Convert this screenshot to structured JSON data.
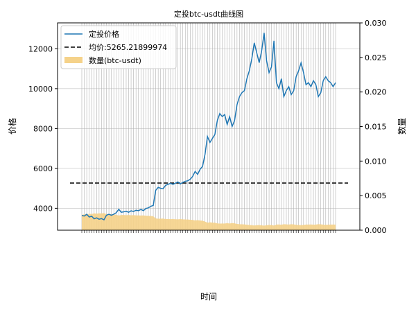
{
  "chart_data": {
    "type": "line",
    "title": "定投btc-usdt曲线图",
    "xlabel": "时间",
    "ylabel_left": "价格",
    "ylabel_right": "数量",
    "ylim_left": [
      2900,
      13300
    ],
    "ylim_right": [
      0.0,
      0.03
    ],
    "yticks_left": [
      4000,
      6000,
      8000,
      10000,
      12000
    ],
    "yticks_right": [
      "0.000",
      "0.005",
      "0.010",
      "0.015",
      "0.020",
      "0.025",
      "0.030"
    ],
    "grid": true,
    "legend_position": "top-left",
    "legend": {
      "price_label": "定投价格",
      "mean_label": "均价:5265.21899974",
      "qty_label": "数量(btc-usdt)"
    },
    "mean_price": 5265.21899974,
    "colors": {
      "price": "#1f77b4",
      "mean": "#000000",
      "quantity": "#f5d28a",
      "grid": "#b0b0b0"
    },
    "n_points": 104,
    "price_series": [
      3640,
      3610,
      3700,
      3560,
      3600,
      3470,
      3520,
      3450,
      3480,
      3420,
      3650,
      3700,
      3650,
      3700,
      3780,
      3950,
      3800,
      3820,
      3850,
      3800,
      3870,
      3840,
      3900,
      3880,
      3940,
      3880,
      3990,
      4020,
      4100,
      4140,
      4900,
      5050,
      5000,
      4980,
      5150,
      5200,
      5250,
      5200,
      5260,
      5320,
      5220,
      5300,
      5350,
      5380,
      5450,
      5600,
      5850,
      5700,
      5950,
      6100,
      6700,
      7600,
      7300,
      7500,
      7700,
      8400,
      8750,
      8600,
      8700,
      8200,
      8600,
      8100,
      8400,
      9200,
      9600,
      9800,
      9900,
      10500,
      10900,
      11500,
      12300,
      11800,
      11300,
      11900,
      12800,
      11400,
      10800,
      11100,
      12400,
      10300,
      10000,
      10500,
      9600,
      9900,
      10100,
      9700,
      9900,
      10600,
      10900,
      11300,
      10800,
      10200,
      10300,
      10100,
      10400,
      10200,
      9600,
      9800,
      10400,
      10600,
      10400,
      10300,
      10100,
      10300
    ],
    "quantity_series": [
      0.00222,
      0.0023,
      0.00225,
      0.00238,
      0.00233,
      0.00244,
      0.0024,
      0.00245,
      0.00243,
      0.00248,
      0.00232,
      0.00228,
      0.00232,
      0.00228,
      0.00222,
      0.00212,
      0.0022,
      0.00219,
      0.00217,
      0.0022,
      0.00216,
      0.00218,
      0.00214,
      0.00215,
      0.00212,
      0.00215,
      0.0021,
      0.00208,
      0.00204,
      0.00202,
      0.0017,
      0.00165,
      0.00167,
      0.00168,
      0.00162,
      0.0016,
      0.00159,
      0.0016,
      0.00158,
      0.00157,
      0.0016,
      0.00157,
      0.00155,
      0.00154,
      0.00152,
      0.00148,
      0.00142,
      0.00146,
      0.0014,
      0.00137,
      0.00124,
      0.00109,
      0.00114,
      0.00111,
      0.00108,
      0.00099,
      0.00095,
      0.00097,
      0.00096,
      0.00101,
      0.00097,
      0.00103,
      0.00099,
      0.0009,
      0.00087,
      0.00085,
      0.00084,
      0.00079,
      0.00076,
      0.00072,
      0.00068,
      0.00071,
      0.00074,
      0.0007,
      0.00065,
      0.00073,
      0.00077,
      0.00075,
      0.00067,
      0.00081,
      0.00083,
      0.00079,
      0.00087,
      0.00084,
      0.00082,
      0.00086,
      0.00084,
      0.00078,
      0.00076,
      0.00073,
      0.00077,
      0.00082,
      0.00081,
      0.00083,
      0.0008,
      0.00082,
      0.00087,
      0.00085,
      0.0008,
      0.00078,
      0.0008,
      0.00081,
      0.00082,
      0.00081
    ]
  }
}
